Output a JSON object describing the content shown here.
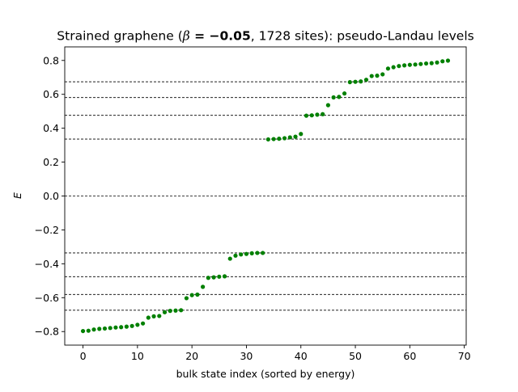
{
  "chart_data": {
    "type": "scatter",
    "title": "Strained graphene (β = −0.05, 1728 sites): pseudo-Landau levels",
    "title_parts": {
      "prefix": "Strained graphene (",
      "beta_symbol": "β",
      "beta_equals": " = −0.05",
      "suffix": ", 1728 sites): pseudo-Landau levels"
    },
    "xlabel": "bulk state index (sorted by energy)",
    "ylabel": "E",
    "xlim": [
      -3.35,
      70.35
    ],
    "ylim": [
      -0.88,
      0.88
    ],
    "xticks": [
      0,
      10,
      20,
      30,
      40,
      50,
      60,
      70
    ],
    "xtick_labels": [
      "0",
      "10",
      "20",
      "30",
      "40",
      "50",
      "60",
      "70"
    ],
    "yticks": [
      -0.8,
      -0.6,
      -0.4,
      -0.2,
      0.0,
      0.2,
      0.4,
      0.6,
      0.8
    ],
    "ytick_labels": [
      "−0.8",
      "−0.6",
      "−0.4",
      "−0.2",
      "0.0",
      "0.2",
      "0.4",
      "0.6",
      "0.8"
    ],
    "grid": false,
    "series_color": "#008000",
    "reference_line_color": "#000000",
    "reference_lines_y": [
      -0.674,
      -0.581,
      -0.476,
      -0.336,
      0.0,
      0.336,
      0.476,
      0.581,
      0.674
    ],
    "series": [
      {
        "x": [
          0,
          1,
          2,
          3,
          4,
          5,
          6,
          7,
          8,
          9,
          10,
          11,
          12,
          13,
          14,
          15,
          16,
          17,
          18,
          19,
          20,
          21,
          22,
          23,
          24,
          25,
          26,
          27,
          28,
          29,
          30,
          31,
          32,
          33,
          34,
          35,
          36,
          37,
          38,
          39,
          40,
          41,
          42,
          43,
          44,
          45,
          46,
          47,
          48,
          49,
          50,
          51,
          52,
          53,
          54,
          55,
          56,
          57,
          58,
          59,
          60,
          61,
          62,
          63,
          64,
          65,
          66,
          67
        ],
        "y": [
          -0.797,
          -0.795,
          -0.788,
          -0.784,
          -0.782,
          -0.779,
          -0.776,
          -0.774,
          -0.771,
          -0.767,
          -0.76,
          -0.752,
          -0.718,
          -0.71,
          -0.708,
          -0.686,
          -0.678,
          -0.676,
          -0.674,
          -0.603,
          -0.585,
          -0.582,
          -0.536,
          -0.483,
          -0.48,
          -0.476,
          -0.474,
          -0.37,
          -0.352,
          -0.345,
          -0.342,
          -0.338,
          -0.336,
          -0.336,
          0.334,
          0.336,
          0.338,
          0.341,
          0.346,
          0.35,
          0.366,
          0.474,
          0.476,
          0.48,
          0.483,
          0.536,
          0.582,
          0.585,
          0.605,
          0.672,
          0.674,
          0.676,
          0.686,
          0.708,
          0.71,
          0.718,
          0.752,
          0.76,
          0.767,
          0.771,
          0.774,
          0.776,
          0.779,
          0.782,
          0.784,
          0.788,
          0.795,
          0.799
        ]
      }
    ]
  }
}
